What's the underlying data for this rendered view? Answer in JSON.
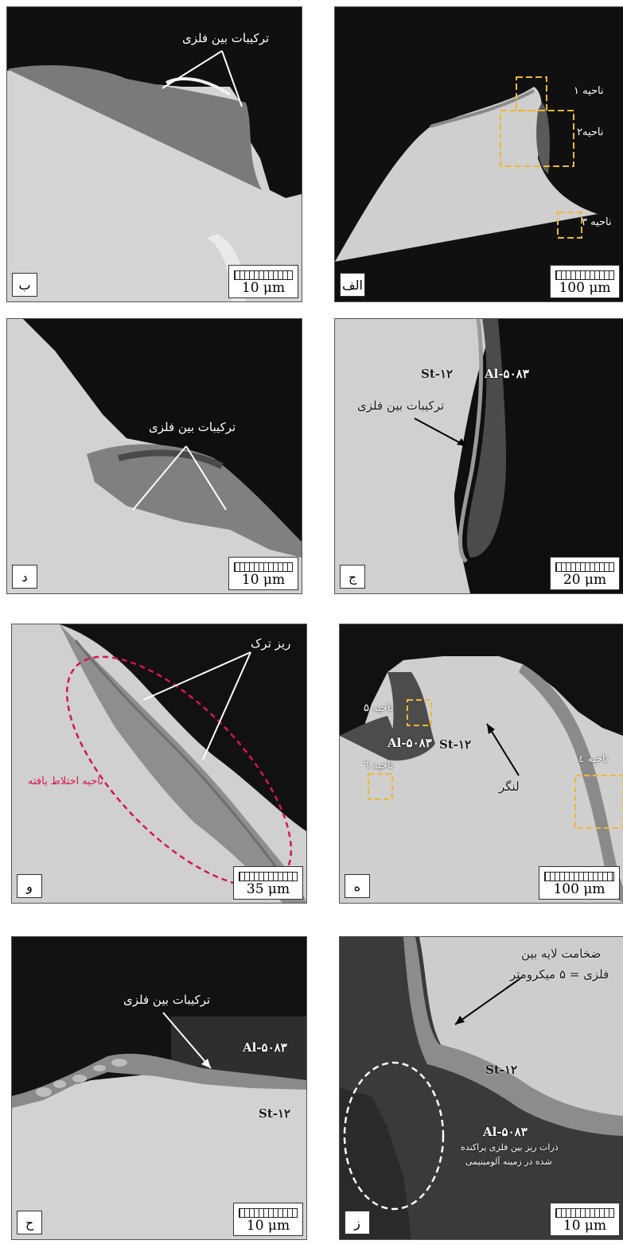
{
  "panels": {
    "b": {
      "letter": "ب",
      "scale": "10 μm",
      "label1": "ترکیبات بین فلزی"
    },
    "alef": {
      "letter": "الف",
      "scale": "100 μm",
      "r1": "ناحیه ۱",
      "r2": "ناحیه۲",
      "r3": "ناحیه ۳"
    },
    "d": {
      "letter": "د",
      "scale": "10 μm",
      "label1": "ترکیبات بین فلزی"
    },
    "j": {
      "letter": "ج",
      "scale": "20 μm",
      "steel": "St-۱۲",
      "al": "Al-۵۰۸۳",
      "label1": "ترکیبات بین فلزی"
    },
    "v": {
      "letter": "و",
      "scale": "35 μm",
      "crack": "ریز ترک",
      "mix": "ناحیه اختلاط یافته"
    },
    "h": {
      "letter": "ه",
      "scale": "100 μm",
      "r5": "ناحیه ۵",
      "r6": "ناحیه ٦",
      "r4": "ناحیه ٤",
      "al": "Al-۵۰۸۳",
      "steel": "St-۱۲",
      "anchor": "لنگر"
    },
    "ha": {
      "letter": "ح",
      "scale": "10 μm",
      "label1": "ترکیبات بین فلزی",
      "al": "Al-۵۰۸۳",
      "steel": "St-۱۲"
    },
    "z": {
      "letter": "ز",
      "scale": "10 μm",
      "thick1": "ضخامت لایه بین",
      "thick2": "فلزی = ۵ میکرومتر",
      "steel": "St-۱۲",
      "al": "Al-۵۰۸۳",
      "disp1": "ذرات ریز بین فلزی پراکنده",
      "disp2": "شده در زمینه آلومینیمی"
    }
  }
}
